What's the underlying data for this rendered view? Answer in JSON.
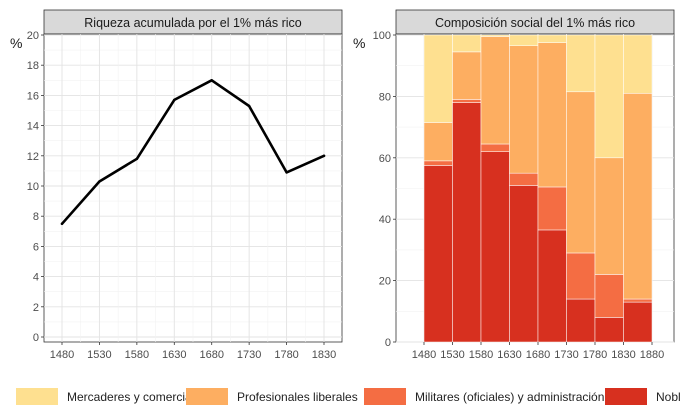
{
  "chart_data": [
    {
      "type": "line",
      "title": "Riqueza acumulada por el 1% más rico",
      "ylabel": "%",
      "xlabel": "",
      "x": [
        1480,
        1530,
        1580,
        1630,
        1680,
        1730,
        1780,
        1830
      ],
      "values": [
        7.5,
        10.3,
        11.8,
        15.7,
        17.0,
        15.3,
        10.9,
        12.0
      ],
      "ylim": [
        0,
        20
      ],
      "yticks": [
        0,
        2,
        4,
        6,
        8,
        10,
        12,
        14,
        16,
        18,
        20
      ],
      "xticks": [
        1480,
        1530,
        1580,
        1630,
        1680,
        1730,
        1780,
        1830
      ],
      "grid": true,
      "line_color": "#000000"
    },
    {
      "type": "bar",
      "stacked": true,
      "title": "Composición social del 1% más rico",
      "ylabel": "%",
      "xlabel": "",
      "categories": [
        1480,
        1530,
        1580,
        1630,
        1680,
        1730,
        1780,
        1830
      ],
      "xticks": [
        1480,
        1530,
        1580,
        1630,
        1680,
        1730,
        1780,
        1830,
        1880
      ],
      "ylim": [
        0,
        100
      ],
      "yticks": [
        0,
        20,
        40,
        60,
        80,
        100
      ],
      "grid": true,
      "series": [
        {
          "name": "Nobleza",
          "color": "#d7301f",
          "values": [
            57.5,
            78,
            62,
            51,
            36.5,
            14,
            8,
            13
          ]
        },
        {
          "name": "Militares (oficiales) y administración",
          "color": "#f46d43",
          "values": [
            1.5,
            1,
            2.5,
            4,
            14,
            15,
            14,
            1
          ]
        },
        {
          "name": "Profesionales liberales",
          "color": "#fdae61",
          "values": [
            12.5,
            15.5,
            35,
            41.5,
            47,
            52.5,
            38,
            67
          ]
        },
        {
          "name": "Mercaderes y comerciantes",
          "color": "#fee090",
          "values": [
            28.5,
            5.5,
            0.5,
            3.5,
            2.5,
            18.5,
            40,
            19
          ]
        }
      ]
    }
  ],
  "legend": [
    {
      "label": "Mercaderes y comerciantes",
      "color": "#fee090"
    },
    {
      "label": "Profesionales liberales",
      "color": "#fdae61"
    },
    {
      "label": "Militares (oficiales) y administración",
      "color": "#f46d43"
    },
    {
      "label": "Nobleza",
      "color": "#d7301f"
    }
  ]
}
